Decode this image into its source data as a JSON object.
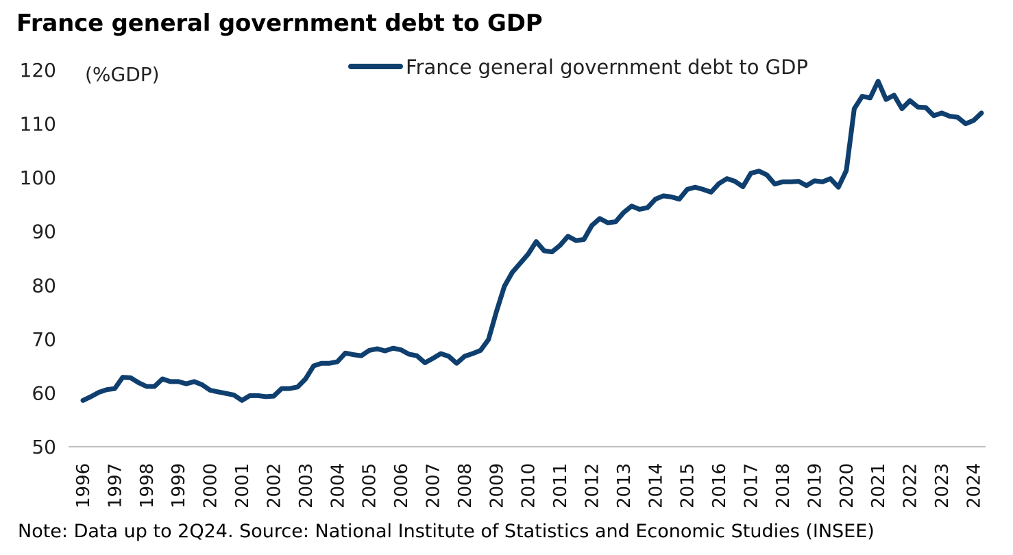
{
  "title": "France general government debt to GDP",
  "note": "Note: Data up to 2Q24. Source: National Institute of Statistics and Economic Studies (INSEE)",
  "colors": {
    "series": "#0f3f6e"
  },
  "chart_data": {
    "type": "line",
    "title": "France general government debt to GDP",
    "ylabel": "(%GDP)",
    "xlabel": "",
    "ylim": [
      50,
      120
    ],
    "yticks": [
      50,
      60,
      70,
      80,
      90,
      100,
      110,
      120
    ],
    "xticks": [
      "1996",
      "1997",
      "1998",
      "1999",
      "2000",
      "2001",
      "2002",
      "2003",
      "2004",
      "2005",
      "2006",
      "2007",
      "2008",
      "2009",
      "2010",
      "2011",
      "2012",
      "2013",
      "2014",
      "2015",
      "2016",
      "2017",
      "2018",
      "2019",
      "2020",
      "2021",
      "2022",
      "2023",
      "2024"
    ],
    "legend": {
      "position": "top-center"
    },
    "grid": false,
    "series": [
      {
        "name": "France general government debt to GDP",
        "x": [
          "1996Q1",
          "1996Q2",
          "1996Q3",
          "1996Q4",
          "1997Q1",
          "1997Q2",
          "1997Q3",
          "1997Q4",
          "1998Q1",
          "1998Q2",
          "1998Q3",
          "1998Q4",
          "1999Q1",
          "1999Q2",
          "1999Q3",
          "1999Q4",
          "2000Q1",
          "2000Q2",
          "2000Q3",
          "2000Q4",
          "2001Q1",
          "2001Q2",
          "2001Q3",
          "2001Q4",
          "2002Q1",
          "2002Q2",
          "2002Q3",
          "2002Q4",
          "2003Q1",
          "2003Q2",
          "2003Q3",
          "2003Q4",
          "2004Q1",
          "2004Q2",
          "2004Q3",
          "2004Q4",
          "2005Q1",
          "2005Q2",
          "2005Q3",
          "2005Q4",
          "2006Q1",
          "2006Q2",
          "2006Q3",
          "2006Q4",
          "2007Q1",
          "2007Q2",
          "2007Q3",
          "2007Q4",
          "2008Q1",
          "2008Q2",
          "2008Q3",
          "2008Q4",
          "2009Q1",
          "2009Q2",
          "2009Q3",
          "2009Q4",
          "2010Q1",
          "2010Q2",
          "2010Q3",
          "2010Q4",
          "2011Q1",
          "2011Q2",
          "2011Q3",
          "2011Q4",
          "2012Q1",
          "2012Q2",
          "2012Q3",
          "2012Q4",
          "2013Q1",
          "2013Q2",
          "2013Q3",
          "2013Q4",
          "2014Q1",
          "2014Q2",
          "2014Q3",
          "2014Q4",
          "2015Q1",
          "2015Q2",
          "2015Q3",
          "2015Q4",
          "2016Q1",
          "2016Q2",
          "2016Q3",
          "2016Q4",
          "2017Q1",
          "2017Q2",
          "2017Q3",
          "2017Q4",
          "2018Q1",
          "2018Q2",
          "2018Q3",
          "2018Q4",
          "2019Q1",
          "2019Q2",
          "2019Q3",
          "2019Q4",
          "2020Q1",
          "2020Q2",
          "2020Q3",
          "2020Q4",
          "2021Q1",
          "2021Q2",
          "2021Q3",
          "2021Q4",
          "2022Q1",
          "2022Q2",
          "2022Q3",
          "2022Q4",
          "2023Q1",
          "2023Q2",
          "2023Q3",
          "2023Q4",
          "2024Q1",
          "2024Q2"
        ],
        "values": [
          58.6,
          59.3,
          60.1,
          60.6,
          60.8,
          62.9,
          62.8,
          61.9,
          61.2,
          61.2,
          62.6,
          62.1,
          62.1,
          61.7,
          62.1,
          61.5,
          60.5,
          60.2,
          59.9,
          59.6,
          58.6,
          59.5,
          59.5,
          59.3,
          59.4,
          60.8,
          60.8,
          61.1,
          62.6,
          65.0,
          65.5,
          65.5,
          65.8,
          67.4,
          67.1,
          66.9,
          67.9,
          68.2,
          67.8,
          68.3,
          68.0,
          67.2,
          66.9,
          65.6,
          66.4,
          67.3,
          66.8,
          65.5,
          66.8,
          67.3,
          67.9,
          69.9,
          75.1,
          79.8,
          82.4,
          84.1,
          85.8,
          88.1,
          86.4,
          86.2,
          87.4,
          89.1,
          88.3,
          88.5,
          91.1,
          92.4,
          91.6,
          91.8,
          93.5,
          94.7,
          94.1,
          94.4,
          96.0,
          96.6,
          96.4,
          96.0,
          97.8,
          98.2,
          97.8,
          97.3,
          98.9,
          99.8,
          99.3,
          98.3,
          100.8,
          101.2,
          100.5,
          98.8,
          99.2,
          99.2,
          99.3,
          98.5,
          99.4,
          99.2,
          99.8,
          98.2,
          101.3,
          112.8,
          115.1,
          114.8,
          117.9,
          114.5,
          115.3,
          112.8,
          114.3,
          113.1,
          113.0,
          111.5,
          112.0,
          111.4,
          111.2,
          110.0,
          110.6,
          112.0
        ]
      }
    ]
  }
}
